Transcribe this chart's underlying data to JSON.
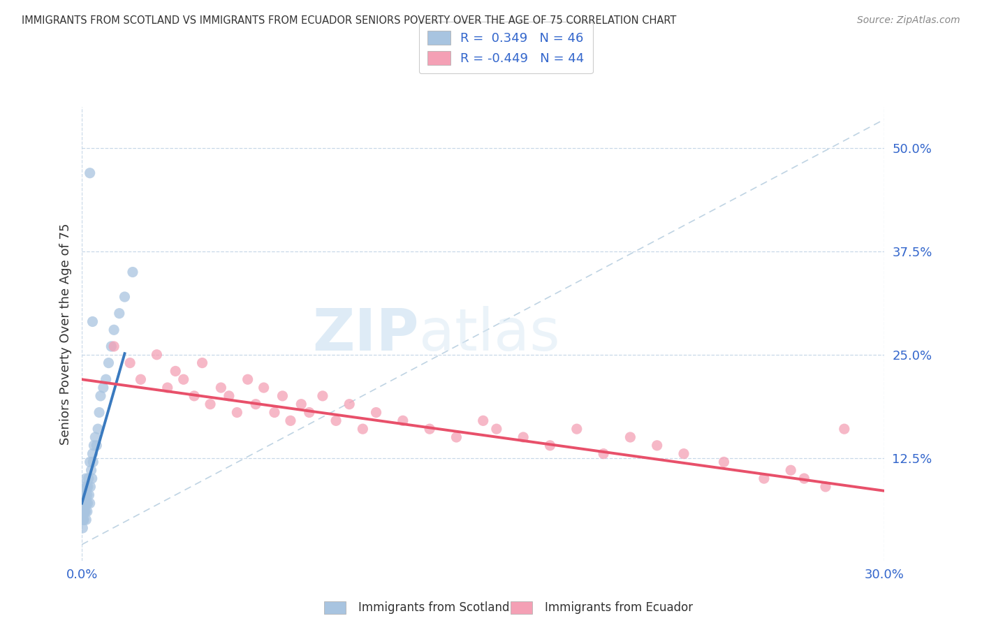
{
  "title": "IMMIGRANTS FROM SCOTLAND VS IMMIGRANTS FROM ECUADOR SENIORS POVERTY OVER THE AGE OF 75 CORRELATION CHART",
  "source": "Source: ZipAtlas.com",
  "ylabel": "Seniors Poverty Over the Age of 75",
  "xlim": [
    0.0,
    0.3
  ],
  "ylim": [
    0.0,
    0.55
  ],
  "x_tick_labels": [
    "0.0%",
    "30.0%"
  ],
  "y_tick_labels": [
    "12.5%",
    "25.0%",
    "37.5%",
    "50.0%"
  ],
  "y_tick_values": [
    0.125,
    0.25,
    0.375,
    0.5
  ],
  "scotland_R": 0.349,
  "scotland_N": 46,
  "ecuador_R": -0.449,
  "ecuador_N": 44,
  "scotland_color": "#a8c4e0",
  "ecuador_color": "#f4a0b5",
  "scotland_line_color": "#3a7abf",
  "ecuador_line_color": "#e8506a",
  "background_color": "#ffffff",
  "watermark_zip": "ZIP",
  "watermark_atlas": "atlas",
  "legend_label_scotland": "Immigrants from Scotland",
  "legend_label_ecuador": "Immigrants from Ecuador",
  "scotland_x": [
    0.0002,
    0.0003,
    0.0004,
    0.0005,
    0.0006,
    0.0007,
    0.0008,
    0.0009,
    0.001,
    0.001,
    0.0012,
    0.0013,
    0.0014,
    0.0015,
    0.0016,
    0.0017,
    0.0018,
    0.002,
    0.002,
    0.0022,
    0.0023,
    0.0025,
    0.0027,
    0.003,
    0.003,
    0.0032,
    0.0035,
    0.0038,
    0.004,
    0.0042,
    0.0045,
    0.005,
    0.0055,
    0.006,
    0.0065,
    0.007,
    0.008,
    0.009,
    0.01,
    0.011,
    0.012,
    0.014,
    0.016,
    0.019,
    0.004,
    0.003
  ],
  "scotland_y": [
    0.05,
    0.04,
    0.06,
    0.05,
    0.07,
    0.06,
    0.05,
    0.08,
    0.06,
    0.09,
    0.07,
    0.08,
    0.06,
    0.1,
    0.05,
    0.07,
    0.09,
    0.06,
    0.08,
    0.07,
    0.09,
    0.1,
    0.08,
    0.12,
    0.07,
    0.09,
    0.11,
    0.1,
    0.13,
    0.12,
    0.14,
    0.15,
    0.14,
    0.16,
    0.18,
    0.2,
    0.21,
    0.22,
    0.24,
    0.26,
    0.28,
    0.3,
    0.32,
    0.35,
    0.29,
    0.47
  ],
  "ecuador_x": [
    0.012,
    0.018,
    0.022,
    0.028,
    0.032,
    0.035,
    0.038,
    0.042,
    0.045,
    0.048,
    0.052,
    0.055,
    0.058,
    0.062,
    0.065,
    0.068,
    0.072,
    0.075,
    0.078,
    0.082,
    0.085,
    0.09,
    0.095,
    0.1,
    0.105,
    0.11,
    0.12,
    0.13,
    0.14,
    0.15,
    0.155,
    0.165,
    0.175,
    0.185,
    0.195,
    0.205,
    0.215,
    0.225,
    0.24,
    0.255,
    0.265,
    0.27,
    0.278,
    0.285
  ],
  "ecuador_y": [
    0.26,
    0.24,
    0.22,
    0.25,
    0.21,
    0.23,
    0.22,
    0.2,
    0.24,
    0.19,
    0.21,
    0.2,
    0.18,
    0.22,
    0.19,
    0.21,
    0.18,
    0.2,
    0.17,
    0.19,
    0.18,
    0.2,
    0.17,
    0.19,
    0.16,
    0.18,
    0.17,
    0.16,
    0.15,
    0.17,
    0.16,
    0.15,
    0.14,
    0.16,
    0.13,
    0.15,
    0.14,
    0.13,
    0.12,
    0.1,
    0.11,
    0.1,
    0.09,
    0.16
  ],
  "scotland_trendline_x": [
    0.0,
    0.016
  ],
  "ecuador_trendline_x": [
    0.0,
    0.3
  ]
}
